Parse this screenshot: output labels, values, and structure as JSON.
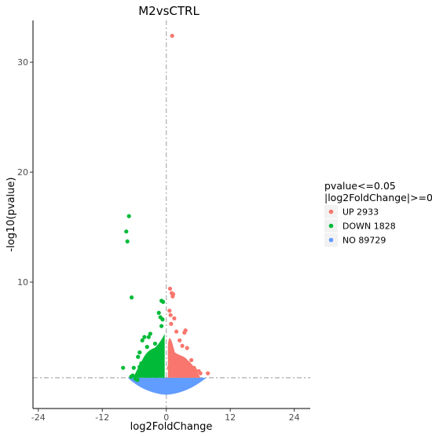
{
  "chart_data": {
    "type": "scatter",
    "title": "M2vsCTRL",
    "xlabel": "log2FoldChange",
    "ylabel": "-log10(pvalue)",
    "xlim": [
      -25,
      27
    ],
    "ylim": [
      -1.5,
      33.8
    ],
    "xticks": [
      -24,
      -12,
      0,
      12,
      24
    ],
    "yticks": [
      10,
      20,
      30
    ],
    "grid": false,
    "vline_x": 0,
    "hline_y": 1.3,
    "legend": {
      "position": "right",
      "title_lines": [
        "pvalue<=0.05",
        "|log2FoldChange|>=0"
      ],
      "entries": [
        {
          "label": "UP 2933",
          "color": "#f8766d"
        },
        {
          "label": "DOWN 1828",
          "color": "#00ba38"
        },
        {
          "label": "NO 89729",
          "color": "#619cff"
        }
      ]
    },
    "series": [
      {
        "name": "UP 2933",
        "color": "#f8766d",
        "points": [
          {
            "x": 1.1,
            "y": 32.4
          },
          {
            "x": 0.7,
            "y": 9.4
          },
          {
            "x": 1.0,
            "y": 9.0
          },
          {
            "x": 1.2,
            "y": 8.7
          },
          {
            "x": 1.3,
            "y": 8.9
          },
          {
            "x": 0.6,
            "y": 7.4
          },
          {
            "x": 0.8,
            "y": 7.0
          },
          {
            "x": 1.5,
            "y": 6.7
          },
          {
            "x": 0.9,
            "y": 6.2
          },
          {
            "x": 1.9,
            "y": 5.5
          },
          {
            "x": 3.6,
            "y": 5.6
          },
          {
            "x": 3.4,
            "y": 5.4
          },
          {
            "x": 2.5,
            "y": 4.7
          },
          {
            "x": 3.0,
            "y": 4.2
          },
          {
            "x": 3.9,
            "y": 4.0
          },
          {
            "x": 4.7,
            "y": 2.9
          },
          {
            "x": 5.2,
            "y": 2.2
          },
          {
            "x": 5.4,
            "y": 2.0
          },
          {
            "x": 6.1,
            "y": 1.9
          },
          {
            "x": 6.4,
            "y": 1.7
          },
          {
            "x": 7.8,
            "y": 1.7
          },
          {
            "x": 0.5,
            "y": 2.2
          }
        ]
      },
      {
        "name": "DOWN 1828",
        "color": "#00ba38",
        "points": [
          {
            "x": -7.0,
            "y": 16.0
          },
          {
            "x": -7.5,
            "y": 14.6
          },
          {
            "x": -7.3,
            "y": 13.7
          },
          {
            "x": -6.5,
            "y": 8.6
          },
          {
            "x": -0.9,
            "y": 8.3
          },
          {
            "x": -0.6,
            "y": 8.2
          },
          {
            "x": -1.4,
            "y": 7.2
          },
          {
            "x": -1.1,
            "y": 6.8
          },
          {
            "x": -0.7,
            "y": 6.6
          },
          {
            "x": -0.9,
            "y": 6.0
          },
          {
            "x": -3.0,
            "y": 5.3
          },
          {
            "x": -3.3,
            "y": 5.0
          },
          {
            "x": -4.1,
            "y": 5.0
          },
          {
            "x": -4.5,
            "y": 4.7
          },
          {
            "x": -2.1,
            "y": 4.4
          },
          {
            "x": -3.6,
            "y": 4.1
          },
          {
            "x": -5.0,
            "y": 3.6
          },
          {
            "x": -5.3,
            "y": 3.2
          },
          {
            "x": -4.7,
            "y": 2.6
          },
          {
            "x": -5.0,
            "y": 2.3
          },
          {
            "x": -6.1,
            "y": 2.2
          },
          {
            "x": -8.1,
            "y": 2.2
          },
          {
            "x": -6.3,
            "y": 1.5
          },
          {
            "x": -6.6,
            "y": 1.4
          },
          {
            "x": -5.8,
            "y": 1.2
          },
          {
            "x": -5.4,
            "y": 1.1
          }
        ]
      },
      {
        "name": "NO 89729",
        "color": "#619cff",
        "points": []
      }
    ]
  }
}
